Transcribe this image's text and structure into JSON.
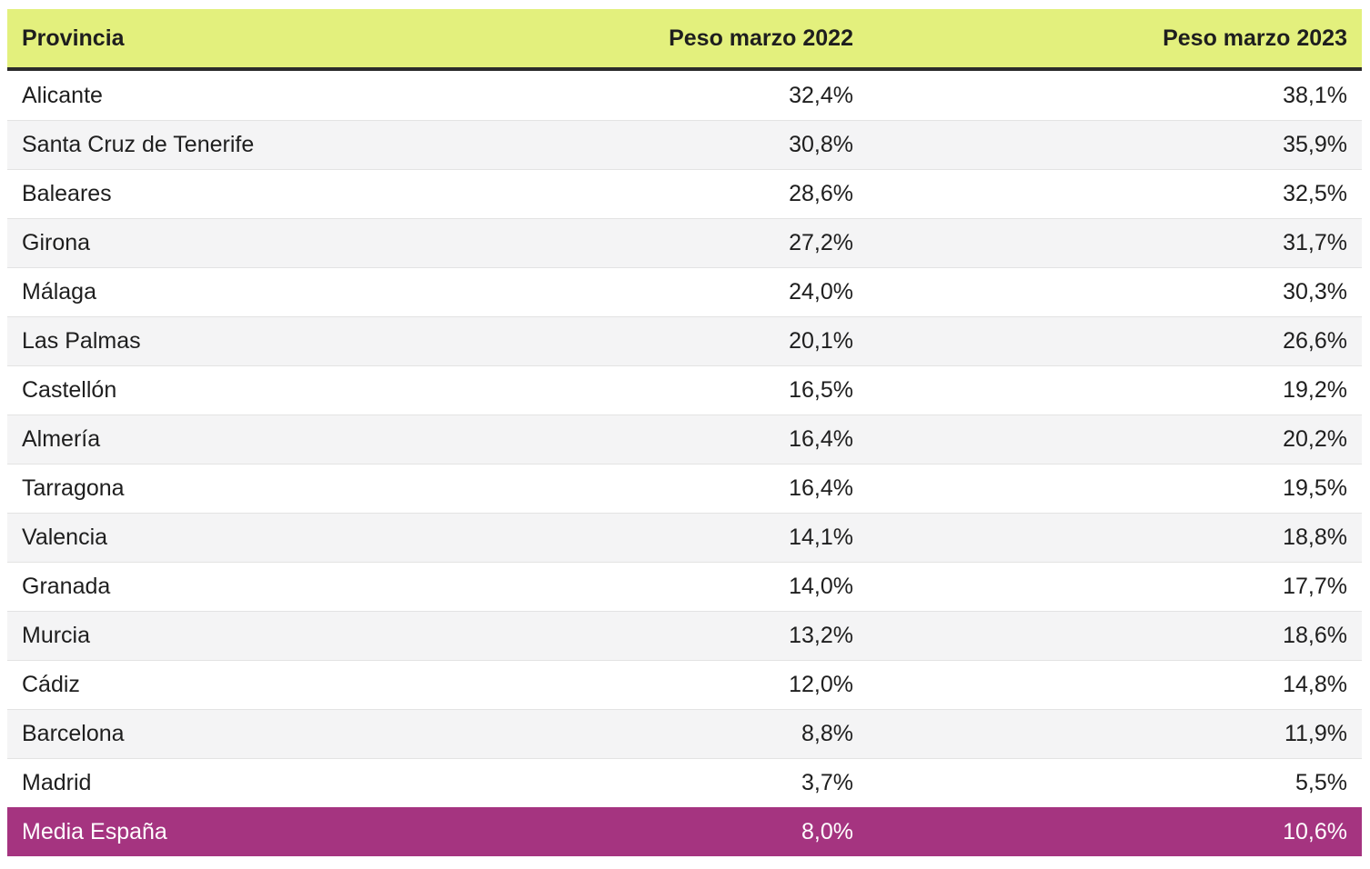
{
  "table": {
    "columns": {
      "provincia": "Provincia",
      "peso_2022": "Peso marzo 2022",
      "peso_2023": "Peso marzo 2023"
    },
    "rows": [
      {
        "provincia": "Alicante",
        "peso_2022": "32,4%",
        "peso_2023": "38,1%"
      },
      {
        "provincia": "Santa Cruz de Tenerife",
        "peso_2022": "30,8%",
        "peso_2023": "35,9%"
      },
      {
        "provincia": "Baleares",
        "peso_2022": "28,6%",
        "peso_2023": "32,5%"
      },
      {
        "provincia": "Girona",
        "peso_2022": "27,2%",
        "peso_2023": "31,7%"
      },
      {
        "provincia": "Málaga",
        "peso_2022": "24,0%",
        "peso_2023": "30,3%"
      },
      {
        "provincia": "Las Palmas",
        "peso_2022": "20,1%",
        "peso_2023": "26,6%"
      },
      {
        "provincia": "Castellón",
        "peso_2022": "16,5%",
        "peso_2023": "19,2%"
      },
      {
        "provincia": "Almería",
        "peso_2022": "16,4%",
        "peso_2023": "20,2%"
      },
      {
        "provincia": "Tarragona",
        "peso_2022": "16,4%",
        "peso_2023": "19,5%"
      },
      {
        "provincia": "Valencia",
        "peso_2022": "14,1%",
        "peso_2023": "18,8%"
      },
      {
        "provincia": "Granada",
        "peso_2022": "14,0%",
        "peso_2023": "17,7%"
      },
      {
        "provincia": "Murcia",
        "peso_2022": "13,2%",
        "peso_2023": "18,6%"
      },
      {
        "provincia": "Cádiz",
        "peso_2022": "12,0%",
        "peso_2023": "14,8%"
      },
      {
        "provincia": "Barcelona",
        "peso_2022": "8,8%",
        "peso_2023": "11,9%"
      },
      {
        "provincia": "Madrid",
        "peso_2022": "3,7%",
        "peso_2023": "5,5%"
      }
    ],
    "total_row": {
      "provincia": "Media España",
      "peso_2022": "8,0%",
      "peso_2023": "10,6%"
    },
    "colors": {
      "header_bg": "#e3f07d",
      "header_border": "#2b2b2b",
      "row_alt_bg": "#f4f4f5",
      "row_separator": "#e3e3e3",
      "total_bg": "#a53480",
      "total_text": "#ffffff",
      "text": "#1e1e1e",
      "page_bg": "#ffffff"
    }
  },
  "chart_data": {
    "type": "table",
    "title": "",
    "columns": [
      "Provincia",
      "Peso marzo 2022",
      "Peso marzo 2023"
    ],
    "rows": [
      [
        "Alicante",
        "32,4%",
        "38,1%"
      ],
      [
        "Santa Cruz de Tenerife",
        "30,8%",
        "35,9%"
      ],
      [
        "Baleares",
        "28,6%",
        "32,5%"
      ],
      [
        "Girona",
        "27,2%",
        "31,7%"
      ],
      [
        "Málaga",
        "24,0%",
        "30,3%"
      ],
      [
        "Las Palmas",
        "20,1%",
        "26,6%"
      ],
      [
        "Castellón",
        "16,5%",
        "19,2%"
      ],
      [
        "Almería",
        "16,4%",
        "20,2%"
      ],
      [
        "Tarragona",
        "16,4%",
        "19,5%"
      ],
      [
        "Valencia",
        "14,1%",
        "18,8%"
      ],
      [
        "Granada",
        "14,0%",
        "17,7%"
      ],
      [
        "Murcia",
        "13,2%",
        "18,6%"
      ],
      [
        "Cádiz",
        "12,0%",
        "14,8%"
      ],
      [
        "Barcelona",
        "8,8%",
        "11,9%"
      ],
      [
        "Madrid",
        "3,7%",
        "5,5%"
      ],
      [
        "Media España",
        "8,0%",
        "10,6%"
      ]
    ],
    "series": [
      {
        "name": "Peso marzo 2022",
        "values": [
          32.4,
          30.8,
          28.6,
          27.2,
          24.0,
          20.1,
          16.5,
          16.4,
          16.4,
          14.1,
          14.0,
          13.2,
          12.0,
          8.8,
          3.7,
          8.0
        ]
      },
      {
        "name": "Peso marzo 2023",
        "values": [
          38.1,
          35.9,
          32.5,
          31.7,
          30.3,
          26.6,
          19.2,
          20.2,
          19.5,
          18.8,
          17.7,
          18.6,
          14.8,
          11.9,
          5.5,
          10.6
        ]
      }
    ],
    "categories": [
      "Alicante",
      "Santa Cruz de Tenerife",
      "Baleares",
      "Girona",
      "Málaga",
      "Las Palmas",
      "Castellón",
      "Almería",
      "Tarragona",
      "Valencia",
      "Granada",
      "Murcia",
      "Cádiz",
      "Barcelona",
      "Madrid",
      "Media España"
    ]
  }
}
